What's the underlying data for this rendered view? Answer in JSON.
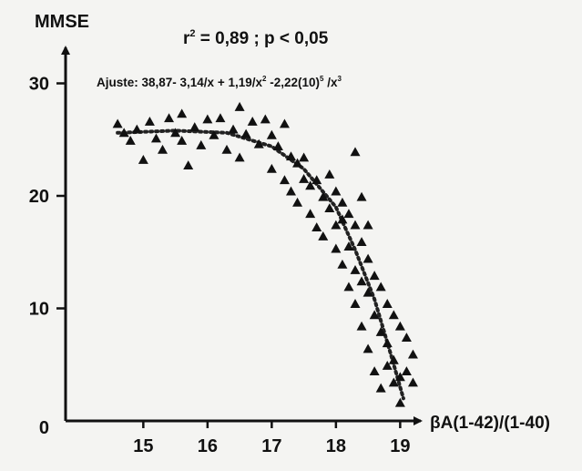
{
  "chart_data": {
    "type": "scatter",
    "title": "",
    "ylabel": "MMSE",
    "xlabel": "βA(1-42)/(1-40)",
    "stats": {
      "r2_prefix": "r",
      "r2_exp": "2",
      "r2_rest": " = 0,89 ; p < 0,05"
    },
    "fit_label": {
      "p1": "Ajuste: 38,87- 3,14/x + 1,19/x",
      "e1": "2",
      "p2": " -2,22(10)",
      "e2": "5",
      "p3": " /x",
      "e3": "3"
    },
    "x_ticks": [
      "15",
      "16",
      "17",
      "18",
      "19"
    ],
    "y_ticks": [
      "0",
      "10",
      "20",
      "30"
    ],
    "xlim": [
      14.3,
      19.8
    ],
    "ylim": [
      0,
      34
    ],
    "grid": false,
    "legend": "none",
    "colors": {
      "points": "#111111",
      "fit": "#222222",
      "axis": "#111111"
    },
    "points": [
      [
        14.6,
        26.4
      ],
      [
        14.7,
        25.6
      ],
      [
        14.8,
        24.9
      ],
      [
        14.9,
        25.9
      ],
      [
        15.0,
        23.2
      ],
      [
        15.1,
        26.6
      ],
      [
        15.2,
        25.1
      ],
      [
        15.3,
        24.1
      ],
      [
        15.4,
        26.9
      ],
      [
        15.5,
        25.6
      ],
      [
        15.6,
        27.3
      ],
      [
        15.6,
        24.9
      ],
      [
        15.7,
        22.7
      ],
      [
        15.8,
        26.1
      ],
      [
        15.9,
        24.5
      ],
      [
        16.0,
        26.8
      ],
      [
        16.1,
        25.4
      ],
      [
        16.2,
        26.9
      ],
      [
        16.3,
        24.1
      ],
      [
        16.4,
        25.9
      ],
      [
        16.5,
        27.9
      ],
      [
        16.5,
        23.4
      ],
      [
        16.6,
        25.5
      ],
      [
        16.7,
        26.6
      ],
      [
        16.8,
        24.6
      ],
      [
        16.9,
        26.8
      ],
      [
        17.0,
        25.4
      ],
      [
        17.0,
        22.4
      ],
      [
        17.1,
        24.4
      ],
      [
        17.2,
        26.4
      ],
      [
        17.2,
        21.4
      ],
      [
        17.3,
        23.5
      ],
      [
        17.3,
        20.4
      ],
      [
        17.4,
        22.9
      ],
      [
        17.4,
        19.4
      ],
      [
        17.5,
        23.4
      ],
      [
        17.5,
        21.5
      ],
      [
        17.6,
        20.9
      ],
      [
        17.6,
        18.4
      ],
      [
        17.7,
        21.4
      ],
      [
        17.7,
        17.2
      ],
      [
        17.8,
        19.9
      ],
      [
        17.8,
        16.4
      ],
      [
        17.9,
        21.9
      ],
      [
        17.9,
        18.9
      ],
      [
        18.0,
        20.4
      ],
      [
        18.0,
        17.4
      ],
      [
        18.0,
        15.3
      ],
      [
        18.1,
        19.4
      ],
      [
        18.1,
        17.9
      ],
      [
        18.1,
        13.9
      ],
      [
        18.2,
        18.4
      ],
      [
        18.2,
        15.5
      ],
      [
        18.2,
        11.9
      ],
      [
        18.3,
        23.9
      ],
      [
        18.3,
        17.4
      ],
      [
        18.3,
        13.4
      ],
      [
        18.3,
        10.4
      ],
      [
        18.4,
        19.9
      ],
      [
        18.4,
        15.9
      ],
      [
        18.4,
        12.4
      ],
      [
        18.4,
        8.4
      ],
      [
        18.5,
        17.4
      ],
      [
        18.5,
        14.4
      ],
      [
        18.5,
        11.4
      ],
      [
        18.5,
        6.4
      ],
      [
        18.6,
        12.9
      ],
      [
        18.6,
        9.4
      ],
      [
        18.6,
        4.4
      ],
      [
        18.7,
        11.9
      ],
      [
        18.7,
        7.9
      ],
      [
        18.7,
        2.9
      ],
      [
        18.8,
        10.4
      ],
      [
        18.8,
        6.9
      ],
      [
        18.8,
        4.9
      ],
      [
        18.9,
        9.4
      ],
      [
        18.9,
        5.4
      ],
      [
        18.9,
        3.4
      ],
      [
        19.0,
        8.4
      ],
      [
        19.0,
        3.9
      ],
      [
        19.0,
        1.6
      ],
      [
        19.1,
        7.4
      ],
      [
        19.1,
        4.4
      ],
      [
        19.2,
        5.9
      ],
      [
        19.2,
        3.4
      ]
    ],
    "fit_curve": [
      [
        14.6,
        25.6
      ],
      [
        15.5,
        25.8
      ],
      [
        16.3,
        25.6
      ],
      [
        17.0,
        24.4
      ],
      [
        17.5,
        22.4
      ],
      [
        18.0,
        19.0
      ],
      [
        18.3,
        15.2
      ],
      [
        18.6,
        10.8
      ],
      [
        18.85,
        6.0
      ],
      [
        19.05,
        2.0
      ]
    ]
  }
}
